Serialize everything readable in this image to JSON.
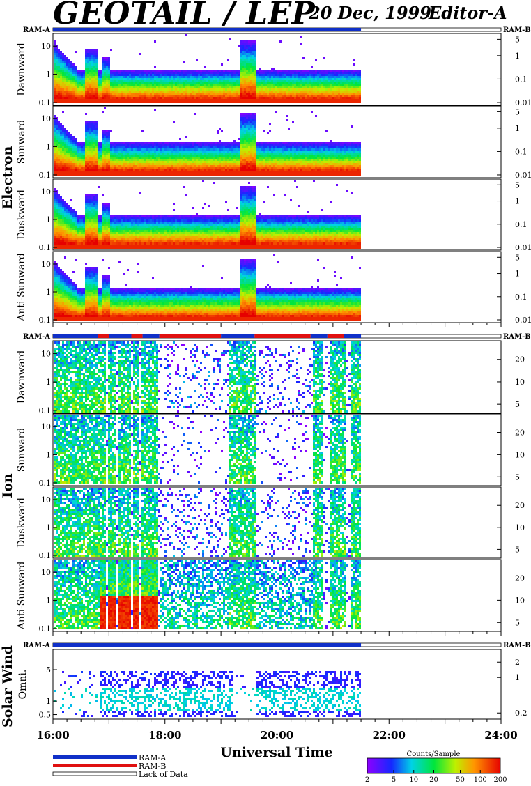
{
  "header": {
    "title": "GEOTAIL / LEP",
    "date": "20 Dec, 1999",
    "editor": "Editor-A"
  },
  "colors": {
    "ram_a": "#1030c8",
    "ram_b": "#e01010",
    "lack_of_data": "#ffffff"
  },
  "legend": {
    "ram_a": "RAM-A",
    "ram_b": "RAM-B",
    "lack": "Lack of Data",
    "colorbar_title": "Counts/Sample",
    "colorbar_ticks": [
      "2",
      "5",
      "10",
      "20",
      "50",
      "100",
      "200"
    ]
  },
  "chart_data": {
    "type": "heatmap",
    "xlabel": "Universal Time",
    "x_range_hours": [
      16,
      24
    ],
    "x_ticks": [
      "16:00",
      "18:00",
      "20:00",
      "22:00",
      "24:00"
    ],
    "data_end_hour": 21.5,
    "groups": [
      {
        "name": "Electron",
        "ram_left": "RAM-A",
        "ram_right": "RAM-B",
        "ram_segments": [
          {
            "start": 16,
            "end": 21.5,
            "mode": "RAM-A"
          }
        ],
        "left_ticks": [
          "0.1",
          "1",
          "10"
        ],
        "right_ticks": [
          "0.01",
          "0.1",
          "1",
          "5"
        ],
        "panels": [
          {
            "label": "Dawnward"
          },
          {
            "label": "Sunward"
          },
          {
            "label": "Duskward"
          },
          {
            "label": "Anti-Sunward"
          }
        ]
      },
      {
        "name": "Ion",
        "ram_left": "RAM-A",
        "ram_right": "RAM-B",
        "ram_segments": [
          {
            "start": 16,
            "end": 16.8,
            "mode": "RAM-A"
          },
          {
            "start": 16.8,
            "end": 17.0,
            "mode": "RAM-B"
          },
          {
            "start": 17.0,
            "end": 17.4,
            "mode": "RAM-A"
          },
          {
            "start": 17.4,
            "end": 17.6,
            "mode": "RAM-B"
          },
          {
            "start": 17.6,
            "end": 17.9,
            "mode": "RAM-A"
          },
          {
            "start": 17.9,
            "end": 19.0,
            "mode": "RAM-B"
          },
          {
            "start": 19.0,
            "end": 19.6,
            "mode": "RAM-A"
          },
          {
            "start": 19.6,
            "end": 20.6,
            "mode": "RAM-B"
          },
          {
            "start": 20.6,
            "end": 20.9,
            "mode": "RAM-A"
          },
          {
            "start": 20.9,
            "end": 21.2,
            "mode": "RAM-B"
          },
          {
            "start": 21.2,
            "end": 21.5,
            "mode": "RAM-A"
          }
        ],
        "left_ticks": [
          "0.1",
          "1",
          "10"
        ],
        "right_ticks": [
          "5",
          "10",
          "20"
        ],
        "panels": [
          {
            "label": "Dawnward"
          },
          {
            "label": "Sunward"
          },
          {
            "label": "Duskward"
          },
          {
            "label": "Anti-Sunward"
          }
        ]
      },
      {
        "name": "Solar Wind",
        "ram_left": "RAM-A",
        "ram_right": "RAM-B",
        "ram_segments": [
          {
            "start": 16,
            "end": 21.5,
            "mode": "RAM-A"
          }
        ],
        "left_ticks": [
          "0.5",
          "1",
          "5"
        ],
        "right_ticks": [
          "0.2",
          "1",
          "2"
        ],
        "panels": [
          {
            "label": "Omni."
          }
        ]
      }
    ]
  }
}
